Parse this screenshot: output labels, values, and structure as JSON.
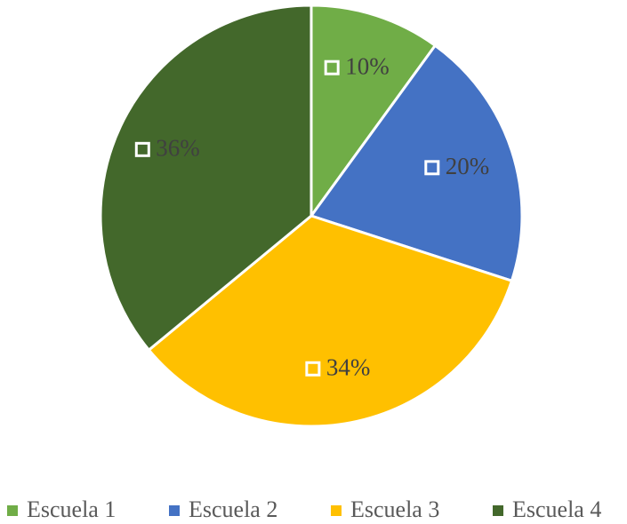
{
  "chart_data": {
    "type": "pie",
    "categories": [
      "Escuela 1",
      "Escuela 2",
      "Escuela 3",
      "Escuela 4"
    ],
    "values": [
      10,
      20,
      34,
      36
    ],
    "value_labels": [
      "10%",
      "20%",
      "34%",
      "36%"
    ],
    "colors": [
      "#70ad47",
      "#4472c4",
      "#ffc000",
      "#43682b"
    ],
    "legend": "bottom"
  }
}
